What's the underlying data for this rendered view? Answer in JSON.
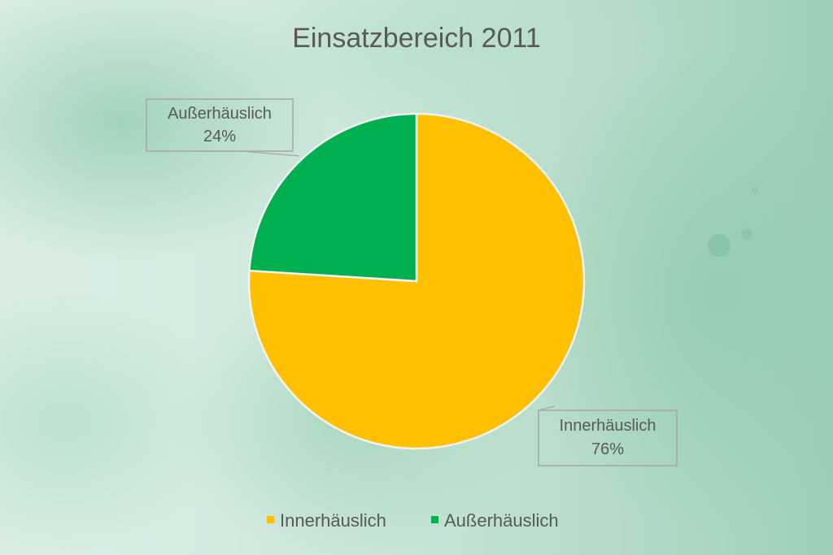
{
  "chart_data": {
    "type": "pie",
    "title": "Einsatzbereich 2011",
    "slices": [
      {
        "name": "Innerhäuslich",
        "value": 76,
        "label": "76%",
        "color": "#ffc000"
      },
      {
        "name": "Außerhäuslich",
        "value": 24,
        "label": "24%",
        "color": "#00b050"
      }
    ],
    "legend_position": "bottom"
  },
  "colors": {
    "background_base": "#d7ece2",
    "background_wash": "#9fd2b8",
    "text": "#595959"
  }
}
